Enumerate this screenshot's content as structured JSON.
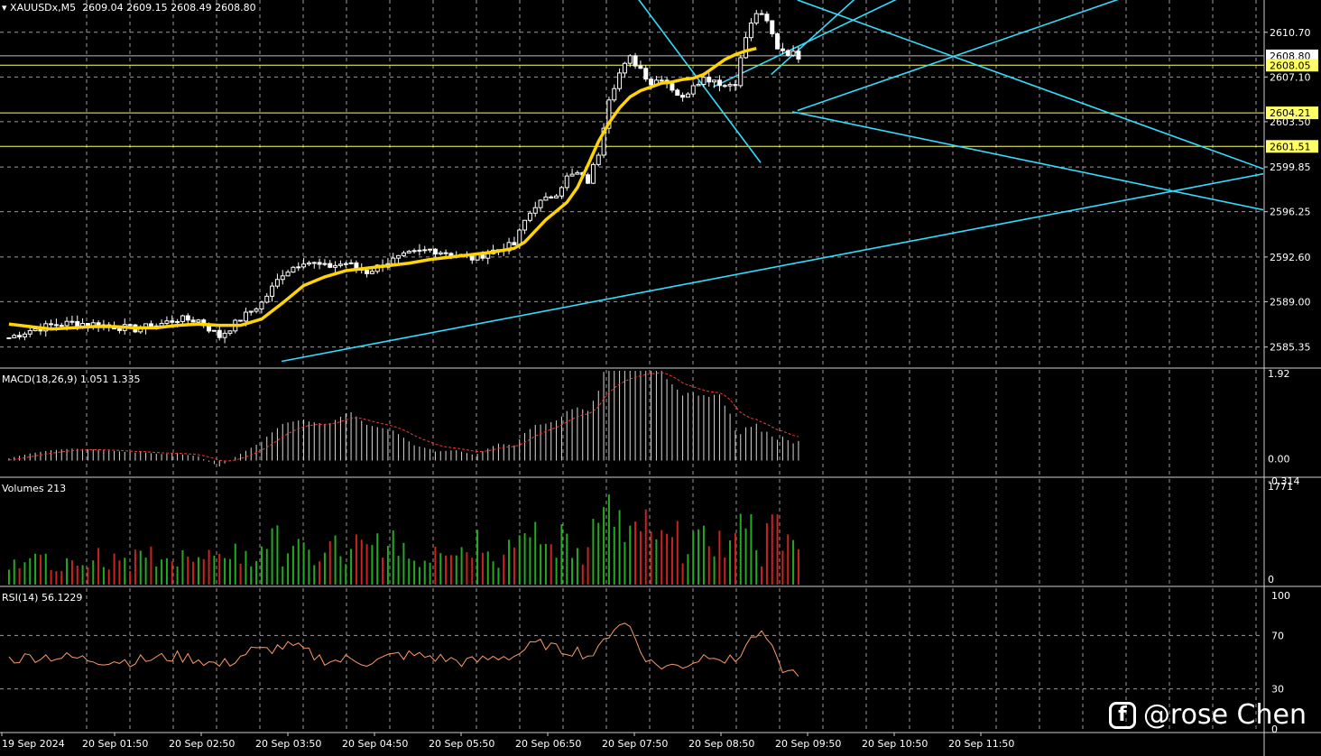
{
  "header": {
    "symbol": "XAUUSDx,M5",
    "ohlc": "2609.04 2609.15 2608.49 2608.80"
  },
  "chart_data": [
    {
      "type": "candlestick",
      "title": "XAUUSDx,M5",
      "timeframe": "M5",
      "y_ticks": [
        "2610.70",
        "2607.10",
        "2603.50",
        "2599.85",
        "2596.25",
        "2592.60",
        "2589.00",
        "2585.35"
      ],
      "x_ticks": [
        "19 Sep 2024",
        "20 Sep 01:50",
        "20 Sep 02:50",
        "20 Sep 03:50",
        "20 Sep 04:50",
        "20 Sep 05:50",
        "20 Sep 06:50",
        "20 Sep 07:50",
        "20 Sep 08:50",
        "20 Sep 09:50",
        "20 Sep 10:50",
        "20 Sep 11:50"
      ],
      "ylim": [
        2583.8,
        2613.3
      ],
      "price_labels": [
        {
          "text": "2608.80",
          "value": 2608.8,
          "style": "current"
        },
        {
          "text": "2608.05",
          "value": 2608.05,
          "style": "yellow"
        },
        {
          "text": "2604.21",
          "value": 2604.21,
          "style": "yellow"
        },
        {
          "text": "2601.51",
          "value": 2601.51,
          "style": "yellow"
        }
      ],
      "horizontal_levels": [
        2608.05,
        2604.21,
        2601.51
      ],
      "close_path": [
        [
          0,
          2586.1
        ],
        [
          4,
          2586.7
        ],
        [
          8,
          2587.1
        ],
        [
          12,
          2587.3
        ],
        [
          16,
          2587.2
        ],
        [
          20,
          2587.0
        ],
        [
          24,
          2586.8
        ],
        [
          28,
          2587.1
        ],
        [
          32,
          2587.6
        ],
        [
          36,
          2587.5
        ],
        [
          40,
          2586.2
        ],
        [
          44,
          2587.6
        ],
        [
          48,
          2588.9
        ],
        [
          52,
          2591.3
        ],
        [
          56,
          2592.3
        ],
        [
          60,
          2591.8
        ],
        [
          64,
          2592.1
        ],
        [
          68,
          2591.4
        ],
        [
          72,
          2592.2
        ],
        [
          76,
          2592.8
        ],
        [
          80,
          2593.2
        ],
        [
          84,
          2592.9
        ],
        [
          88,
          2592.5
        ],
        [
          92,
          2593.1
        ],
        [
          96,
          2593.6
        ],
        [
          98,
          2595.5
        ],
        [
          100,
          2596.8
        ],
        [
          102,
          2597.2
        ],
        [
          104,
          2597.8
        ],
        [
          106,
          2599.0
        ],
        [
          108,
          2599.3
        ],
        [
          110,
          2598.7
        ],
        [
          112,
          2601.0
        ],
        [
          114,
          2605.5
        ],
        [
          116,
          2607.4
        ],
        [
          118,
          2608.6
        ],
        [
          120,
          2607.8
        ],
        [
          122,
          2606.6
        ],
        [
          124,
          2607.1
        ],
        [
          126,
          2606.2
        ],
        [
          128,
          2605.3
        ],
        [
          130,
          2606.6
        ],
        [
          132,
          2607.0
        ],
        [
          134,
          2606.9
        ],
        [
          136,
          2606.4
        ],
        [
          138,
          2606.7
        ],
        [
          140,
          2610.3
        ],
        [
          142,
          2612.3
        ],
        [
          144,
          2611.5
        ],
        [
          146,
          2609.5
        ],
        [
          148,
          2609.1
        ],
        [
          150,
          2608.8
        ]
      ],
      "series": [
        {
          "name": "",
          "type": "moving-average",
          "color": "#ffd400",
          "values": [
            [
              0,
              2587.2
            ],
            [
              4,
              2587.0
            ],
            [
              8,
              2586.8
            ],
            [
              12,
              2586.9
            ],
            [
              16,
              2587.0
            ],
            [
              20,
              2587.0
            ],
            [
              24,
              2586.9
            ],
            [
              28,
              2586.9
            ],
            [
              32,
              2587.1
            ],
            [
              36,
              2587.2
            ],
            [
              40,
              2587.1
            ],
            [
              44,
              2587.1
            ],
            [
              48,
              2587.6
            ],
            [
              52,
              2588.9
            ],
            [
              56,
              2590.3
            ],
            [
              60,
              2591.0
            ],
            [
              64,
              2591.5
            ],
            [
              68,
              2591.7
            ],
            [
              72,
              2591.9
            ],
            [
              76,
              2592.1
            ],
            [
              80,
              2592.4
            ],
            [
              84,
              2592.6
            ],
            [
              88,
              2592.8
            ],
            [
              92,
              2593.0
            ],
            [
              96,
              2593.3
            ],
            [
              98,
              2593.8
            ],
            [
              100,
              2594.7
            ],
            [
              102,
              2595.6
            ],
            [
              104,
              2596.3
            ],
            [
              106,
              2597.0
            ],
            [
              108,
              2598.2
            ],
            [
              110,
              2600.0
            ],
            [
              112,
              2601.9
            ],
            [
              114,
              2603.4
            ],
            [
              116,
              2604.6
            ],
            [
              118,
              2605.5
            ],
            [
              120,
              2606.0
            ],
            [
              122,
              2606.3
            ],
            [
              124,
              2606.6
            ],
            [
              126,
              2606.7
            ],
            [
              128,
              2606.9
            ],
            [
              130,
              2607.0
            ],
            [
              132,
              2607.3
            ],
            [
              134,
              2607.9
            ],
            [
              136,
              2608.5
            ],
            [
              138,
              2608.9
            ],
            [
              140,
              2609.2
            ],
            [
              142,
              2609.4
            ]
          ]
        }
      ]
    },
    {
      "type": "histogram",
      "title": "MACD(18,26,9) 1.051 1.335",
      "indicator": "MACD(18,26,9)",
      "macd_value": "1.051",
      "signal_value": "1.335",
      "y_ticks": [
        "1.92",
        "0.00",
        "-0.314"
      ],
      "ylim": [
        -0.314,
        1.92
      ]
    },
    {
      "type": "bar",
      "title": "Volumes 213",
      "indicator": "Volumes",
      "last_value": "213",
      "y_ticks": [
        "1771",
        "0"
      ],
      "ylim": [
        0,
        1771
      ]
    },
    {
      "type": "line",
      "title": "RSI(14) 56.1229",
      "indicator": "RSI(14)",
      "last_value": "56.1229",
      "y_ticks": [
        "100",
        "70",
        "30",
        "0"
      ],
      "ylim": [
        0,
        100
      ],
      "color": "#ff9966"
    }
  ],
  "watermark": {
    "icon": "facebook-icon",
    "text": "@rose Chen"
  },
  "colors": {
    "background": "#000000",
    "grid": "#9a9a9a",
    "candle": "#ffffff",
    "moving_average": "#ffd400",
    "level": "#ffff66",
    "trendline": "#33ddff",
    "macd_histogram": "#d8d8d8",
    "macd_signal": "#ff3333",
    "volume_up": "#22aa22",
    "volume_down": "#cc2222",
    "rsi": "#ff9966"
  }
}
